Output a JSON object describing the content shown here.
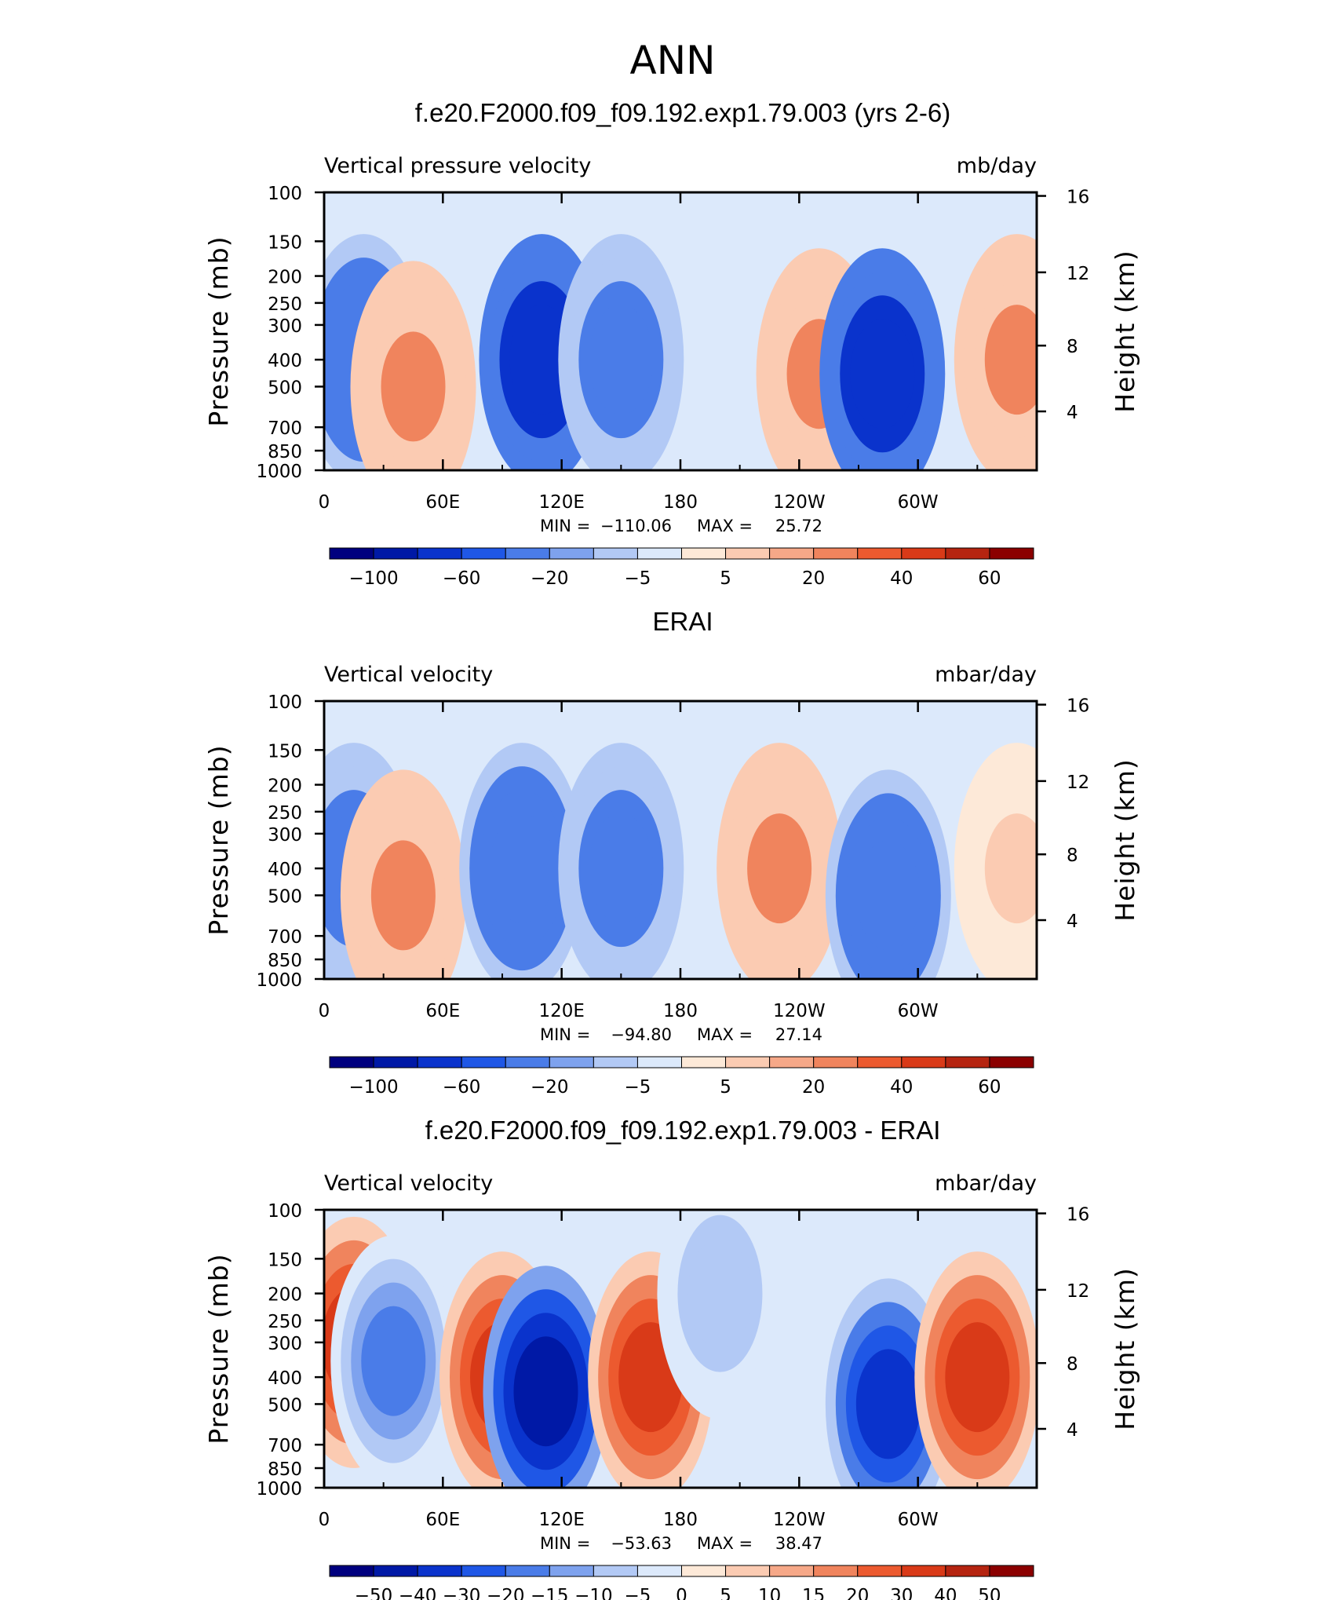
{
  "figure_title": "ANN",
  "chart_data": [
    {
      "type": "heatmap",
      "title": "f.e20.F2000.f09_f09.192.exp1.79.003 (yrs 2-6)",
      "subtitle_left": "Vertical pressure velocity",
      "subtitle_right": "mb/day",
      "ylabel": "Pressure (mb)",
      "ylabel_right": "Height (km)",
      "x_ticks": [
        "0",
        "60E",
        "120E",
        "180",
        "120W",
        "60W"
      ],
      "y_ticks": [
        "100",
        "150",
        "200",
        "250",
        "300",
        "400",
        "500",
        "700",
        "850",
        "1000"
      ],
      "y_ticks_right": [
        "16",
        "12",
        "8",
        "4"
      ],
      "ylim": [
        1000,
        100
      ],
      "xlim": [
        0,
        360
      ],
      "min_label": "MIN =",
      "min_value": "−110.06",
      "max_label": "MAX =",
      "max_value": "25.72",
      "colorbar_labels": [
        "−100",
        "−60",
        "−20",
        "−5",
        "5",
        "20",
        "40",
        "60"
      ],
      "colorbar_colors": [
        "#00007f",
        "#0019a6",
        "#0a33cc",
        "#1f57e6",
        "#4a7ce8",
        "#7ea2ee",
        "#b2c9f5",
        "#dce9fb",
        "#fde9d8",
        "#fbcbb2",
        "#f6a888",
        "#f0845d",
        "#ec5a2f",
        "#d93a18",
        "#b52410",
        "#8b0000"
      ],
      "features": [
        {
          "lon": 20,
          "p": 400,
          "value": -60
        },
        {
          "lon": 45,
          "p": 500,
          "value": 20
        },
        {
          "lon": 110,
          "p": 400,
          "value": -100
        },
        {
          "lon": 150,
          "p": 400,
          "value": -40
        },
        {
          "lon": 250,
          "p": 450,
          "value": 20
        },
        {
          "lon": 282,
          "p": 450,
          "value": -100
        },
        {
          "lon": 350,
          "p": 400,
          "value": 20
        }
      ]
    },
    {
      "type": "heatmap",
      "title": "ERAI",
      "subtitle_left": "Vertical velocity",
      "subtitle_right": "mbar/day",
      "ylabel": "Pressure (mb)",
      "ylabel_right": "Height (km)",
      "x_ticks": [
        "0",
        "60E",
        "120E",
        "180",
        "120W",
        "60W"
      ],
      "y_ticks": [
        "100",
        "150",
        "200",
        "250",
        "300",
        "400",
        "500",
        "700",
        "850",
        "1000"
      ],
      "y_ticks_right": [
        "16",
        "12",
        "8",
        "4"
      ],
      "ylim": [
        1000,
        100
      ],
      "xlim": [
        0,
        360
      ],
      "min_label": "MIN =",
      "min_value": "−94.80",
      "max_label": "MAX =",
      "max_value": "27.14",
      "colorbar_labels": [
        "−100",
        "−60",
        "−20",
        "−5",
        "5",
        "20",
        "40",
        "60"
      ],
      "colorbar_colors": [
        "#00007f",
        "#0019a6",
        "#0a33cc",
        "#1f57e6",
        "#4a7ce8",
        "#7ea2ee",
        "#b2c9f5",
        "#dce9fb",
        "#fde9d8",
        "#fbcbb2",
        "#f6a888",
        "#f0845d",
        "#ec5a2f",
        "#d93a18",
        "#b52410",
        "#8b0000"
      ],
      "features": [
        {
          "lon": 15,
          "p": 400,
          "value": -40
        },
        {
          "lon": 40,
          "p": 500,
          "value": 20
        },
        {
          "lon": 100,
          "p": 400,
          "value": -60
        },
        {
          "lon": 150,
          "p": 400,
          "value": -40
        },
        {
          "lon": 230,
          "p": 400,
          "value": 20
        },
        {
          "lon": 285,
          "p": 500,
          "value": -60
        },
        {
          "lon": 350,
          "p": 400,
          "value": 5
        }
      ]
    },
    {
      "type": "heatmap",
      "title": "f.e20.F2000.f09_f09.192.exp1.79.003 - ERAI",
      "subtitle_left": "Vertical velocity",
      "subtitle_right": "mbar/day",
      "ylabel": "Pressure (mb)",
      "ylabel_right": "Height (km)",
      "x_ticks": [
        "0",
        "60E",
        "120E",
        "180",
        "120W",
        "60W"
      ],
      "y_ticks": [
        "100",
        "150",
        "200",
        "250",
        "300",
        "400",
        "500",
        "700",
        "850",
        "1000"
      ],
      "y_ticks_right": [
        "16",
        "12",
        "8",
        "4"
      ],
      "ylim": [
        1000,
        100
      ],
      "xlim": [
        0,
        360
      ],
      "min_label": "MIN =",
      "min_value": "−53.63",
      "max_label": "MAX =",
      "max_value": "38.47",
      "colorbar_labels": [
        "−50",
        "−40",
        "−30",
        "−20",
        "−15",
        "−10",
        "−5",
        "0",
        "5",
        "10",
        "15",
        "20",
        "30",
        "40",
        "50"
      ],
      "colorbar_colors": [
        "#00007f",
        "#0019a6",
        "#0a33cc",
        "#1f57e6",
        "#4a7ce8",
        "#7ea2ee",
        "#b2c9f5",
        "#dce9fb",
        "#fde9d8",
        "#fbcbb2",
        "#f6a888",
        "#f0845d",
        "#ec5a2f",
        "#d93a18",
        "#b52410",
        "#8b0000"
      ],
      "features": [
        {
          "lon": 15,
          "p": 300,
          "value": 30
        },
        {
          "lon": 35,
          "p": 350,
          "value": -20
        },
        {
          "lon": 90,
          "p": 400,
          "value": 30
        },
        {
          "lon": 112,
          "p": 450,
          "value": -50
        },
        {
          "lon": 165,
          "p": 400,
          "value": 30
        },
        {
          "lon": 200,
          "p": 200,
          "value": -10
        },
        {
          "lon": 285,
          "p": 500,
          "value": -40
        },
        {
          "lon": 330,
          "p": 400,
          "value": 30
        }
      ]
    }
  ]
}
